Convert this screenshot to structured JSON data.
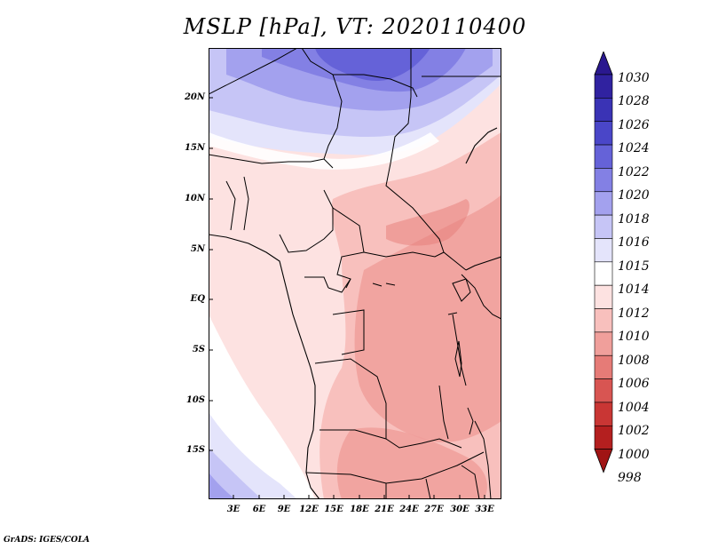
{
  "title": "MSLP [hPa], VT: 2020110400",
  "credit": "GrADS: IGES/COLA",
  "y_axis_labels": [
    "20N",
    "15N",
    "10N",
    "5N",
    "EQ",
    "5S",
    "10S",
    "15S"
  ],
  "x_axis_labels": [
    "3E",
    "6E",
    "9E",
    "12E",
    "15E",
    "18E",
    "21E",
    "24E",
    "27E",
    "30E",
    "33E"
  ],
  "colorbar": {
    "levels": [
      "1030",
      "1028",
      "1026",
      "1024",
      "1022",
      "1020",
      "1018",
      "1016",
      "1015",
      "1014",
      "1012",
      "1010",
      "1008",
      "1006",
      "1004",
      "1002",
      "1000",
      "998"
    ],
    "colors": [
      "#2a188f",
      "#3022a0",
      "#3a33b5",
      "#4a46c8",
      "#6562d8",
      "#8380e4",
      "#a3a1ee",
      "#c6c5f6",
      "#e4e4fb",
      "#ffffff",
      "#fde2e1",
      "#f8c0bd",
      "#f09f9b",
      "#e67b77",
      "#d85552",
      "#c93634",
      "#b41f1f",
      "#a01414"
    ]
  }
}
